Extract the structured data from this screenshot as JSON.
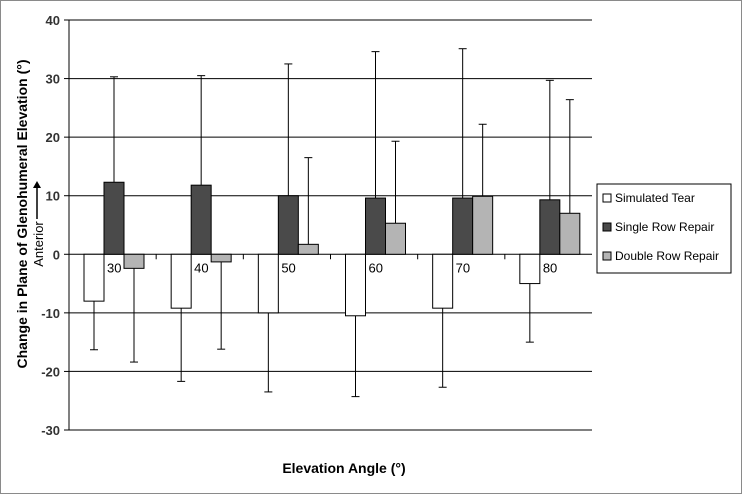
{
  "chart_data": {
    "type": "bar",
    "categories": [
      "30",
      "40",
      "50",
      "60",
      "70",
      "80"
    ],
    "series": [
      {
        "name": "Simulated Tear",
        "color": "#ffffff",
        "values": [
          -8,
          -9.2,
          -10,
          -10.5,
          -9.2,
          -5
        ],
        "error": [
          8.3,
          12.5,
          13.5,
          13.8,
          13.5,
          10
        ]
      },
      {
        "name": "Single Row Repair",
        "color": "#4a4a4a",
        "values": [
          12.3,
          11.8,
          10,
          9.6,
          9.6,
          9.3
        ],
        "error": [
          18,
          18.7,
          22.5,
          25,
          25.5,
          20.4
        ]
      },
      {
        "name": "Double Row Repair",
        "color": "#b4b4b4",
        "values": [
          -2.4,
          -1.3,
          1.7,
          5.3,
          9.9,
          7
        ],
        "error": [
          16,
          14.9,
          14.8,
          14,
          12.3,
          19.4
        ]
      }
    ],
    "xlabel": "Elevation Angle (°)",
    "ylabel": "Change in Plane of Glenohumeral Elevation (°)",
    "annotation": "Anterior",
    "ylim": [
      -30,
      40
    ],
    "yticks": [
      -30,
      -20,
      -10,
      0,
      10,
      20,
      30,
      40
    ],
    "grid": true,
    "legend": "right"
  }
}
